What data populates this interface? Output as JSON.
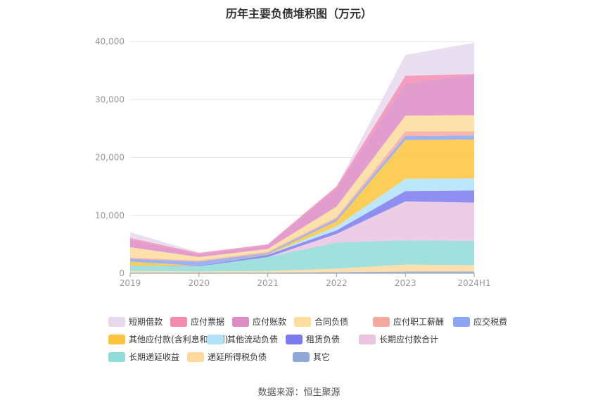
{
  "title": "历年主要负债堆积图（万元）",
  "source": "数据来源：恒生聚源",
  "chart_data": {
    "type": "area",
    "stacked": true,
    "x": [
      "2019",
      "2020",
      "2021",
      "2022",
      "2023",
      "2024H1"
    ],
    "ylim": [
      0,
      40000
    ],
    "yticks": [
      0,
      10000,
      20000,
      30000,
      40000
    ],
    "ytick_labels": [
      "0",
      "10,000",
      "20,000",
      "30,000",
      "40,000"
    ],
    "grid": true,
    "legend_position": "bottom",
    "series": [
      {
        "name": "其它",
        "color": "#8fa9d6",
        "values": [
          100,
          100,
          100,
          200,
          300,
          300
        ]
      },
      {
        "name": "递延所得税负债",
        "color": "#fdd9a0",
        "values": [
          300,
          200,
          300,
          600,
          1200,
          1100
        ]
      },
      {
        "name": "长期递延收益",
        "color": "#8fdcd8",
        "values": [
          900,
          900,
          2400,
          4500,
          4200,
          4200
        ]
      },
      {
        "name": "长期应付款合计",
        "color": "#eac3e0",
        "values": [
          0,
          0,
          0,
          1500,
          6700,
          6600
        ]
      },
      {
        "name": "租赁负债",
        "color": "#7b7bef",
        "values": [
          0,
          100,
          400,
          600,
          1800,
          2100
        ]
      },
      {
        "name": "其他流动负债",
        "color": "#b0e2f8",
        "values": [
          0,
          0,
          0,
          700,
          2100,
          2100
        ]
      },
      {
        "name": "其他应付款(含利息和股利)",
        "color": "#fbc43c",
        "values": [
          700,
          0,
          100,
          900,
          6700,
          6700
        ]
      },
      {
        "name": "应交税费",
        "color": "#8aa6f2",
        "values": [
          500,
          700,
          200,
          400,
          700,
          700
        ]
      },
      {
        "name": "应付职工薪酬",
        "color": "#f5a99c",
        "values": [
          200,
          200,
          200,
          300,
          800,
          700
        ]
      },
      {
        "name": "合同负债",
        "color": "#fddc9c",
        "values": [
          1800,
          600,
          500,
          1800,
          2700,
          2800
        ]
      },
      {
        "name": "应付账款",
        "color": "#dd8cc6",
        "values": [
          1300,
          500,
          600,
          3200,
          5600,
          7000
        ]
      },
      {
        "name": "应付票据",
        "color": "#f58cb0",
        "values": [
          300,
          200,
          200,
          300,
          1300,
          100
        ]
      },
      {
        "name": "短期借款",
        "color": "#e6d9ee",
        "values": [
          1000,
          100,
          0,
          0,
          3600,
          5400
        ]
      }
    ]
  },
  "legend": [
    {
      "name": "短期借款",
      "color": "#e6d9ee"
    },
    {
      "name": "应付票据",
      "color": "#f58cb0"
    },
    {
      "name": "应付账款",
      "color": "#dd8cc6"
    },
    {
      "name": "合同负债",
      "color": "#fddc9c"
    },
    {
      "name": "应付职工薪酬",
      "color": "#f5a99c"
    },
    {
      "name": "应交税费",
      "color": "#8aa6f2"
    },
    {
      "name": "其他应付款(含利息和股利)",
      "color": "#fbc43c"
    },
    {
      "name": "其他流动负债",
      "color": "#b0e2f8"
    },
    {
      "name": "租赁负债",
      "color": "#7b7bef"
    },
    {
      "name": "长期应付款合计",
      "color": "#eac3e0"
    },
    {
      "name": "长期递延收益",
      "color": "#8fdcd8"
    },
    {
      "name": "递延所得税负债",
      "color": "#fdd9a0"
    },
    {
      "name": "其它",
      "color": "#8fa9d6"
    }
  ]
}
